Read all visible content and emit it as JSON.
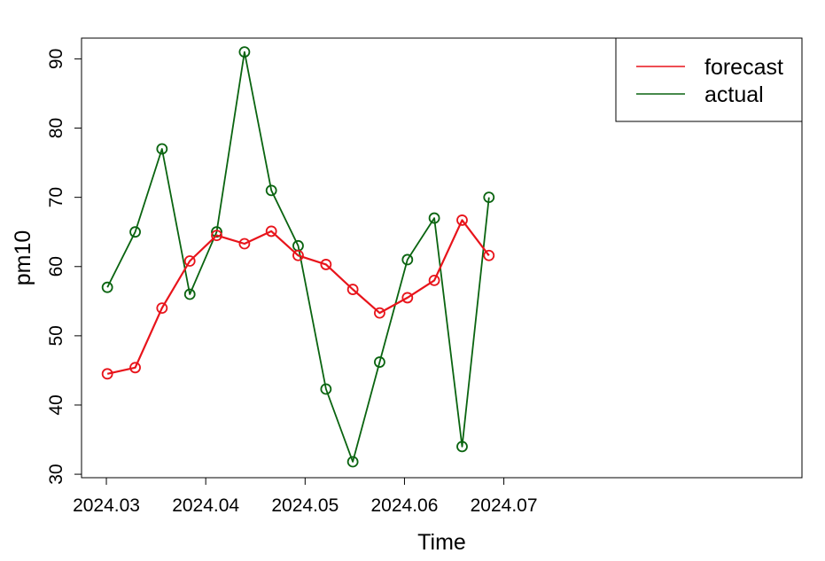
{
  "chart_data": {
    "type": "line",
    "xlabel": "Time",
    "ylabel": "pm10",
    "xlim": [
      2024.0275,
      2024.1
    ],
    "ylim": [
      29.5,
      93
    ],
    "x_ticks": [
      2024.03,
      2024.04,
      2024.05,
      2024.06,
      2024.07
    ],
    "x_tick_labels": [
      "2024.03",
      "2024.04",
      "2024.05",
      "2024.06",
      "2024.07"
    ],
    "y_ticks": [
      30,
      40,
      50,
      60,
      70,
      80,
      90
    ],
    "y_tick_labels": [
      "30",
      "40",
      "50",
      "60",
      "70",
      "80",
      "90"
    ],
    "x": [
      2024.0301,
      2024.0329,
      2024.0356,
      2024.0384,
      2024.0411,
      2024.0439,
      2024.0466,
      2024.0493,
      2024.0521,
      2024.0548,
      2024.0575,
      2024.0603,
      2024.063,
      2024.0658,
      2024.0685
    ],
    "series": [
      {
        "name": "forecast",
        "color": "#e8141b",
        "marker": "circle-open",
        "values": [
          44.5,
          45.4,
          54.0,
          60.8,
          64.5,
          63.3,
          65.1,
          61.6,
          60.3,
          56.7,
          53.3,
          55.5,
          58.0,
          66.7,
          61.6
        ]
      },
      {
        "name": "actual",
        "color": "#0a6410",
        "marker": "circle-open",
        "values": [
          57,
          65,
          77,
          56,
          65,
          91,
          71,
          63,
          42.3,
          31.8,
          46.2,
          61,
          67,
          34,
          70
        ]
      }
    ],
    "legend": {
      "position": "top-right",
      "entries": [
        "forecast",
        "actual"
      ]
    },
    "grid": false
  }
}
